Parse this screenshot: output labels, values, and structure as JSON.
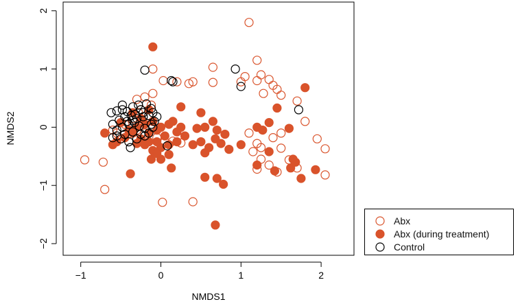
{
  "chart_data": {
    "type": "scatter",
    "xlabel": "NMDS1",
    "ylabel": "NMDS2",
    "xlim": [
      -1.22,
      2.41
    ],
    "ylim": [
      -2.2,
      2.15
    ],
    "x_ticks": [
      -1,
      0,
      1,
      2
    ],
    "y_ticks": [
      -2,
      -1,
      0,
      1,
      2
    ],
    "x_tick_labels": [
      "−1",
      "0",
      "1",
      "2"
    ],
    "y_tick_labels": [
      "−2",
      "−1",
      "0",
      "1",
      "2"
    ],
    "grid": false,
    "legend_placement": "outside-bottom-right",
    "colors": {
      "abx": "#d9532b",
      "control": "#000000"
    },
    "series": [
      {
        "name": "Abx",
        "marker": "open-circle",
        "color": "#d9532b",
        "points": [
          [
            1.1,
            1.8
          ],
          [
            1.2,
            1.15
          ],
          [
            0.65,
            1.03
          ],
          [
            -0.1,
            1.0
          ],
          [
            1.25,
            0.9
          ],
          [
            1.35,
            0.82
          ],
          [
            1.2,
            0.8
          ],
          [
            1.05,
            0.87
          ],
          [
            1.0,
            0.78
          ],
          [
            1.4,
            0.72
          ],
          [
            1.45,
            0.65
          ],
          [
            1.5,
            0.55
          ],
          [
            0.65,
            0.77
          ],
          [
            0.4,
            0.78
          ],
          [
            0.35,
            0.75
          ],
          [
            0.2,
            0.78
          ],
          [
            0.03,
            0.8
          ],
          [
            -0.1,
            0.58
          ],
          [
            -0.2,
            0.52
          ],
          [
            -0.3,
            0.48
          ],
          [
            1.28,
            0.58
          ],
          [
            1.7,
            0.45
          ],
          [
            1.8,
            0.1
          ],
          [
            1.95,
            -0.2
          ],
          [
            2.05,
            -0.37
          ],
          [
            1.5,
            -0.1
          ],
          [
            1.4,
            -0.18
          ],
          [
            1.5,
            -0.36
          ],
          [
            1.6,
            -0.56
          ],
          [
            1.7,
            -0.7
          ],
          [
            1.35,
            -0.65
          ],
          [
            1.25,
            -0.35
          ],
          [
            1.2,
            -0.28
          ],
          [
            1.15,
            -0.42
          ],
          [
            2.05,
            -0.82
          ],
          [
            1.1,
            -0.1
          ],
          [
            1.2,
            -0.72
          ],
          [
            1.45,
            -0.77
          ],
          [
            1.25,
            -0.55
          ],
          [
            -0.95,
            -0.56
          ],
          [
            -0.72,
            -0.6
          ],
          [
            -0.7,
            -1.07
          ],
          [
            0.02,
            -1.29
          ],
          [
            0.4,
            -1.28
          ],
          [
            0.05,
            -0.25
          ],
          [
            0.25,
            -0.27
          ],
          [
            0.15,
            -0.24
          ],
          [
            -0.05,
            -0.18
          ],
          [
            -0.2,
            -0.1
          ],
          [
            -0.15,
            0.2
          ],
          [
            -0.25,
            0.3
          ],
          [
            -0.35,
            0.15
          ],
          [
            -0.45,
            0.05
          ],
          [
            -0.55,
            -0.1
          ],
          [
            -0.6,
            -0.05
          ],
          [
            -0.5,
            -0.2
          ],
          [
            -0.4,
            -0.12
          ],
          [
            -0.3,
            -0.05
          ],
          [
            -0.22,
            0.08
          ],
          [
            -0.12,
            0.38
          ],
          [
            -0.28,
            0.25
          ]
        ]
      },
      {
        "name": "Abx (during treatment)",
        "marker": "filled-circle",
        "color": "#d9532b",
        "points": [
          [
            -0.1,
            1.38
          ],
          [
            1.8,
            0.68
          ],
          [
            1.45,
            0.33
          ],
          [
            0.25,
            0.35
          ],
          [
            0.5,
            0.25
          ],
          [
            0.65,
            0.1
          ],
          [
            0.45,
            -0.02
          ],
          [
            0.55,
            0.0
          ],
          [
            0.7,
            -0.05
          ],
          [
            0.8,
            -0.12
          ],
          [
            0.68,
            -0.2
          ],
          [
            0.3,
            -0.15
          ],
          [
            0.2,
            -0.25
          ],
          [
            0.4,
            -0.3
          ],
          [
            0.5,
            -0.25
          ],
          [
            0.6,
            -0.35
          ],
          [
            0.75,
            -0.28
          ],
          [
            0.85,
            -0.38
          ],
          [
            1.0,
            -0.3
          ],
          [
            0.55,
            -0.44
          ],
          [
            0.1,
            -0.3
          ],
          [
            0.0,
            -0.35
          ],
          [
            -0.1,
            -0.4
          ],
          [
            -0.05,
            -0.25
          ],
          [
            0.05,
            -0.15
          ],
          [
            0.1,
            0.05
          ],
          [
            0.15,
            0.1
          ],
          [
            0.25,
            0.0
          ],
          [
            0.2,
            -0.08
          ],
          [
            0.0,
            0.0
          ],
          [
            -0.05,
            -0.05
          ],
          [
            -0.1,
            0.1
          ],
          [
            -0.15,
            -0.1
          ],
          [
            -0.2,
            -0.3
          ],
          [
            -0.3,
            -0.28
          ],
          [
            -0.35,
            -0.1
          ],
          [
            -0.25,
            -0.2
          ],
          [
            -0.15,
            -0.25
          ],
          [
            -0.12,
            -0.55
          ],
          [
            0.0,
            -0.55
          ],
          [
            0.13,
            -0.7
          ],
          [
            -0.38,
            -0.8
          ],
          [
            0.1,
            -0.47
          ],
          [
            -0.05,
            -0.45
          ],
          [
            0.55,
            -0.86
          ],
          [
            0.7,
            -0.88
          ],
          [
            0.78,
            -0.98
          ],
          [
            0.68,
            -1.68
          ],
          [
            1.2,
            0.0
          ],
          [
            1.27,
            -0.05
          ],
          [
            1.35,
            0.08
          ],
          [
            1.6,
            -0.02
          ],
          [
            1.35,
            -0.42
          ],
          [
            1.2,
            -0.65
          ],
          [
            1.42,
            -0.75
          ],
          [
            1.62,
            -0.7
          ],
          [
            1.68,
            -0.6
          ],
          [
            1.75,
            -0.88
          ],
          [
            1.93,
            -0.73
          ],
          [
            1.65,
            -0.55
          ],
          [
            -0.2,
            0.05
          ],
          [
            -0.3,
            0.0
          ],
          [
            -0.4,
            -0.05
          ],
          [
            -0.5,
            0.08
          ],
          [
            -0.45,
            -0.18
          ],
          [
            -0.55,
            -0.25
          ],
          [
            -0.6,
            -0.3
          ],
          [
            -0.7,
            -0.1
          ],
          [
            -0.25,
            0.15
          ],
          [
            -0.35,
            0.25
          ],
          [
            -0.15,
            0.3
          ]
        ]
      },
      {
        "name": "Control",
        "marker": "open-circle",
        "color": "#000000",
        "points": [
          [
            -0.2,
            0.98
          ],
          [
            0.15,
            0.78
          ],
          [
            0.13,
            0.8
          ],
          [
            0.93,
            1.0
          ],
          [
            1.0,
            0.7
          ],
          [
            1.72,
            0.3
          ],
          [
            -0.12,
            0.32
          ],
          [
            -0.62,
            0.25
          ],
          [
            -0.55,
            0.28
          ],
          [
            -0.48,
            0.3
          ],
          [
            -0.42,
            0.27
          ],
          [
            -0.37,
            0.2
          ],
          [
            -0.3,
            0.15
          ],
          [
            -0.22,
            0.18
          ],
          [
            -0.15,
            0.2
          ],
          [
            -0.25,
            0.3
          ],
          [
            -0.35,
            0.35
          ],
          [
            -0.45,
            0.18
          ],
          [
            -0.52,
            0.12
          ],
          [
            -0.6,
            0.05
          ],
          [
            -0.55,
            -0.05
          ],
          [
            -0.48,
            0.0
          ],
          [
            -0.4,
            0.05
          ],
          [
            -0.33,
            0.08
          ],
          [
            -0.27,
            0.02
          ],
          [
            -0.2,
            -0.02
          ],
          [
            -0.12,
            0.05
          ],
          [
            -0.08,
            0.1
          ],
          [
            -0.05,
            0.18
          ],
          [
            -0.15,
            -0.1
          ],
          [
            -0.25,
            -0.12
          ],
          [
            -0.35,
            -0.08
          ],
          [
            -0.45,
            -0.12
          ],
          [
            -0.55,
            -0.15
          ],
          [
            -0.6,
            -0.18
          ],
          [
            -0.5,
            -0.2
          ],
          [
            -0.4,
            -0.25
          ],
          [
            -0.3,
            -0.2
          ],
          [
            -0.2,
            -0.15
          ],
          [
            -0.1,
            0.0
          ],
          [
            -0.38,
            -0.35
          ],
          [
            -0.42,
            0.1
          ],
          [
            -0.32,
            0.22
          ],
          [
            0.08,
            -0.32
          ],
          [
            -0.28,
            0.38
          ],
          [
            -0.18,
            0.4
          ],
          [
            -0.1,
            0.25
          ],
          [
            -0.48,
            0.38
          ],
          [
            -0.35,
            0.12
          ],
          [
            -0.22,
            0.25
          ]
        ]
      }
    ]
  }
}
